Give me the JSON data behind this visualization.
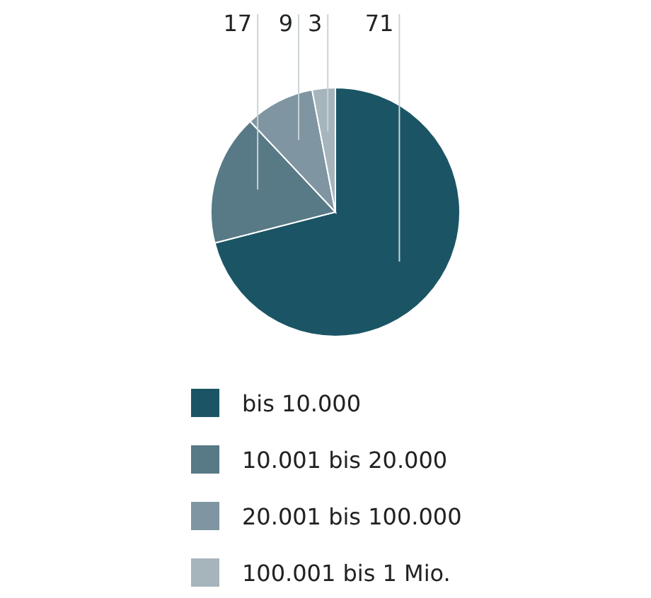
{
  "chart_data": {
    "type": "pie",
    "categories": [
      "bis 10.000",
      "10.001 bis 20.000",
      "20.001 bis 100.000",
      "100.001 bis 1 Mio."
    ],
    "values": [
      71,
      17,
      9,
      3
    ],
    "colors": [
      "#1b5565",
      "#587986",
      "#7f95a1",
      "#a6b4bc"
    ],
    "data_labels": true,
    "legend": "bottom"
  }
}
